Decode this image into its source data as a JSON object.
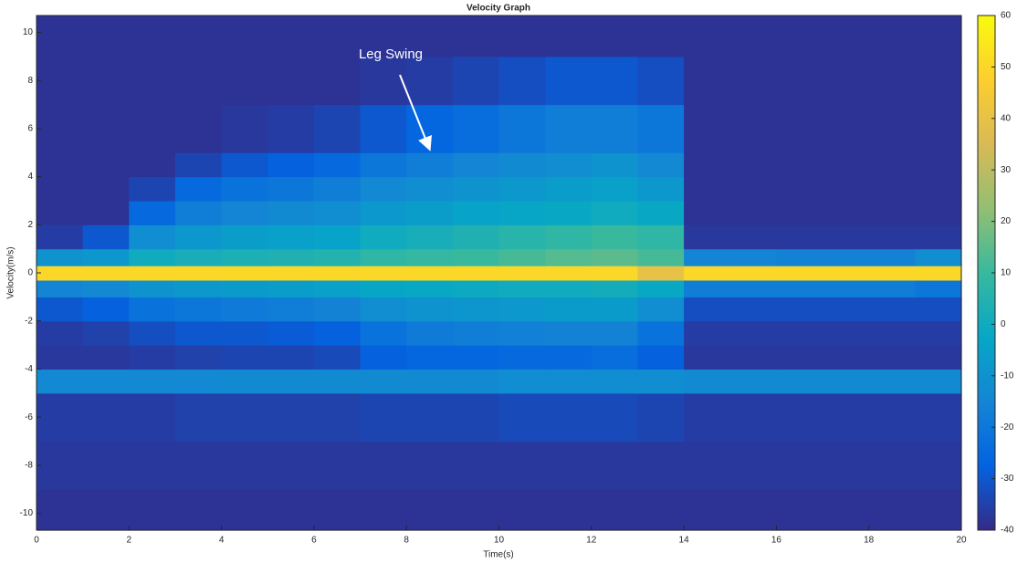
{
  "chart_data": {
    "type": "heatmap",
    "title": "Velocity Graph",
    "xlabel": "Time(s)",
    "ylabel": "Velocity(m/s)",
    "annotation": "Leg Swing",
    "xlim": [
      0,
      20
    ],
    "xticks": [
      0,
      2,
      4,
      6,
      8,
      10,
      12,
      14,
      16,
      18,
      20
    ],
    "ylim": [
      -10.7,
      10.7
    ],
    "yticks": [
      -10,
      -8,
      -6,
      -4,
      -2,
      0,
      2,
      4,
      6,
      8,
      10
    ],
    "x_bins": [
      0,
      1,
      2,
      3,
      4,
      5,
      6,
      7,
      8,
      9,
      10,
      11,
      12,
      13,
      14,
      15,
      16,
      17,
      18,
      19,
      20
    ],
    "y_bins": [
      -10.7,
      -9,
      -7,
      -5,
      -4,
      -3,
      -2,
      -1,
      -0.3,
      0.3,
      1,
      2,
      3,
      4,
      5,
      7,
      9,
      10.7
    ],
    "z": [
      [
        -38,
        -38,
        -38,
        -38,
        -38,
        -38,
        -38,
        -38,
        -38,
        -38,
        -38,
        -38,
        -38,
        -38,
        -38,
        -38,
        -38,
        -38,
        -38,
        -38
      ],
      [
        -37,
        -37,
        -37,
        -37,
        -37,
        -37,
        -37,
        -37,
        -37,
        -37,
        -37,
        -37,
        -37,
        -37,
        -37,
        -37,
        -37,
        -37,
        -37,
        -37
      ],
      [
        -36,
        -36,
        -36,
        -35,
        -35,
        -35,
        -35,
        -34,
        -34,
        -34,
        -33,
        -33,
        -33,
        -34,
        -36,
        -36,
        -36,
        -36,
        -36,
        -36
      ],
      [
        -14,
        -14,
        -14,
        -14,
        -13,
        -13,
        -13,
        -13,
        -13,
        -13,
        -12,
        -12,
        -12,
        -12,
        -13,
        -13,
        -13,
        -13,
        -13,
        -13
      ],
      [
        -37,
        -37,
        -36,
        -35,
        -34,
        -34,
        -33,
        -28,
        -26,
        -26,
        -25,
        -25,
        -24,
        -28,
        -37,
        -37,
        -37,
        -37,
        -37,
        -37
      ],
      [
        -36,
        -35,
        -32,
        -30,
        -30,
        -29,
        -28,
        -22,
        -19,
        -18,
        -17,
        -16,
        -16,
        -22,
        -36,
        -36,
        -36,
        -36,
        -36,
        -36
      ],
      [
        -30,
        -28,
        -22,
        -20,
        -19,
        -18,
        -16,
        -12,
        -10,
        -9,
        -8,
        -7,
        -7,
        -12,
        -32,
        -32,
        -32,
        -32,
        -32,
        -32
      ],
      [
        -15,
        -14,
        -10,
        -8,
        -7,
        -6,
        -5,
        -3,
        -2,
        -1,
        0,
        0,
        1,
        -2,
        -18,
        -18,
        -18,
        -18,
        -18,
        -20
      ],
      [
        50,
        50,
        50,
        50,
        50,
        50,
        50,
        50,
        50,
        50,
        50,
        50,
        50,
        40,
        50,
        50,
        50,
        50,
        50,
        50
      ],
      [
        -10,
        -8,
        0,
        2,
        3,
        4,
        5,
        8,
        9,
        10,
        12,
        14,
        15,
        12,
        -15,
        -15,
        -16,
        -16,
        -16,
        -12
      ],
      [
        -36,
        -30,
        -12,
        -8,
        -6,
        -5,
        -4,
        0,
        2,
        4,
        6,
        8,
        10,
        8,
        -37,
        -37,
        -37,
        -37,
        -37,
        -37
      ],
      [
        -38,
        -38,
        -25,
        -18,
        -15,
        -13,
        -12,
        -8,
        -6,
        -4,
        -3,
        -2,
        0,
        -2,
        -38,
        -38,
        -38,
        -38,
        -38,
        -38
      ],
      [
        -38,
        -38,
        -34,
        -25,
        -22,
        -20,
        -18,
        -14,
        -12,
        -10,
        -8,
        -6,
        -5,
        -8,
        -38,
        -38,
        -38,
        -38,
        -38,
        -38
      ],
      [
        -38,
        -38,
        -38,
        -34,
        -30,
        -28,
        -25,
        -20,
        -18,
        -15,
        -13,
        -12,
        -10,
        -14,
        -38,
        -38,
        -38,
        -38,
        -38,
        -38
      ],
      [
        -38,
        -38,
        -38,
        -38,
        -37,
        -36,
        -34,
        -30,
        -26,
        -24,
        -20,
        -18,
        -18,
        -20,
        -38,
        -38,
        -38,
        -38,
        -38,
        -38
      ],
      [
        -38,
        -38,
        -38,
        -38,
        -38,
        -38,
        -38,
        -37,
        -36,
        -34,
        -32,
        -30,
        -30,
        -32,
        -38,
        -38,
        -38,
        -38,
        -38,
        -38
      ],
      [
        -38,
        -38,
        -38,
        -38,
        -38,
        -38,
        -38,
        -38,
        -38,
        -38,
        -38,
        -38,
        -38,
        -38,
        -38,
        -38,
        -38,
        -38,
        -38,
        -38
      ]
    ],
    "clim": [
      -40,
      60
    ],
    "cticks": [
      -40,
      -30,
      -20,
      -10,
      0,
      10,
      20,
      30,
      40,
      50,
      60
    ],
    "colormap": [
      "#352a87",
      "#0363e1",
      "#1485d4",
      "#06a7c6",
      "#38b99e",
      "#92bf73",
      "#d9ba56",
      "#fcce2e",
      "#f9fb0e"
    ]
  }
}
